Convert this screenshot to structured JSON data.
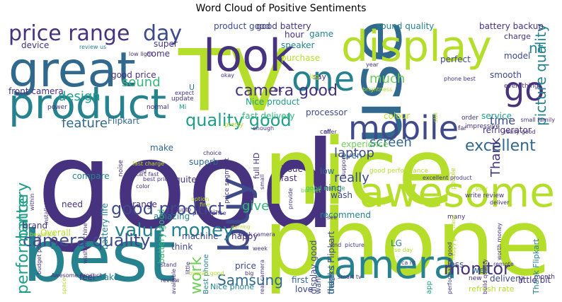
{
  "title": "Word Cloud of Positive Sentiments",
  "palette": {
    "dark_purple": "#46327e",
    "indigo": "#3e4a89",
    "blue": "#31688e",
    "teal": "#26828e",
    "teal_green": "#1f9e89",
    "green": "#35b779",
    "lime": "#6ece58",
    "yellow_green": "#b5de2b",
    "yellow": "#e3e418"
  },
  "words": [
    {
      "text": "good",
      "color": "#46327e"
    },
    {
      "text": "TV",
      "color": "#b5de2b"
    },
    {
      "text": "nice",
      "color": "#b5de2b"
    },
    {
      "text": "phone",
      "color": "#b5de2b"
    },
    {
      "text": "use",
      "color": "#31688e"
    },
    {
      "text": "best",
      "color": "#26828e"
    },
    {
      "text": "great",
      "color": "#31688e"
    },
    {
      "text": "display",
      "color": "#b5de2b"
    },
    {
      "text": "product",
      "color": "#26828e"
    },
    {
      "text": "look",
      "color": "#46327e"
    },
    {
      "text": "awesome",
      "color": "#b5de2b"
    },
    {
      "text": "camera",
      "color": "#26828e"
    },
    {
      "text": "mobile",
      "color": "#3e4a89"
    },
    {
      "text": "one",
      "color": "#26828e"
    },
    {
      "text": "go",
      "color": "#46327e"
    },
    {
      "text": "buy",
      "color": "#3e4a89"
    },
    {
      "text": "price range",
      "color": "#46327e"
    },
    {
      "text": "day",
      "color": "#3e4a89"
    },
    {
      "text": "value money",
      "color": "#26828e"
    },
    {
      "text": "camera quality",
      "color": "#3e4a89"
    },
    {
      "text": "good product",
      "color": "#3e4a89"
    },
    {
      "text": "quality good",
      "color": "#1f9e89"
    },
    {
      "text": "camera good",
      "color": "#46327e"
    },
    {
      "text": "excellent",
      "color": "#31688e"
    },
    {
      "text": "monitor",
      "color": "#46327e"
    },
    {
      "text": "Samsung",
      "color": "#31688e"
    },
    {
      "text": "screen",
      "color": "#31688e"
    },
    {
      "text": "laptop",
      "color": "#3e4a89"
    },
    {
      "text": "really",
      "color": "#3e4a89"
    },
    {
      "text": "give",
      "color": "#35b779"
    },
    {
      "text": "feature",
      "color": "#31688e"
    },
    {
      "text": "sound",
      "color": "#35b779"
    },
    {
      "text": "design",
      "color": "#1f9e89"
    },
    {
      "text": "much",
      "color": "#6ece58"
    },
    {
      "text": "time",
      "color": "#3e4a89"
    },
    {
      "text": "picture quality",
      "color": "#26828e"
    },
    {
      "text": "performance",
      "color": "#1f9e89"
    },
    {
      "text": "battery",
      "color": "#1f9e89"
    },
    {
      "text": "work",
      "color": "#6ece58"
    },
    {
      "text": "Thank",
      "color": "#46327e"
    },
    {
      "text": "nt",
      "color": "#26828e"
    },
    {
      "text": "good battery",
      "color": "#46327e"
    },
    {
      "text": "product good",
      "color": "#3e4a89"
    },
    {
      "text": "sound quality",
      "color": "#26828e"
    },
    {
      "text": "battery backup",
      "color": "#46327e"
    },
    {
      "text": "Flipkart",
      "color": "#31688e"
    },
    {
      "text": "good price",
      "color": "#46327e"
    },
    {
      "text": "Nice product",
      "color": "#1f9e89"
    },
    {
      "text": "fast delivery",
      "color": "#35b779"
    },
    {
      "text": "processor",
      "color": "#3e4a89"
    },
    {
      "text": "smooth",
      "color": "#3e4a89"
    },
    {
      "text": "refrigerator",
      "color": "#46327e"
    },
    {
      "text": "speaker",
      "color": "#26828e"
    },
    {
      "text": "purchase",
      "color": "#b5de2b"
    },
    {
      "text": "perfect",
      "color": "#3e4a89"
    },
    {
      "text": "hour",
      "color": "#46327e"
    },
    {
      "text": "game",
      "color": "#26828e"
    },
    {
      "text": "model",
      "color": "#3e4a89"
    },
    {
      "text": "charge",
      "color": "#46327e"
    },
    {
      "text": "service",
      "color": "#1f9e89"
    },
    {
      "text": "front camera",
      "color": "#46327e"
    },
    {
      "text": "device",
      "color": "#46327e"
    },
    {
      "text": "super",
      "color": "#46327e"
    },
    {
      "text": "come",
      "color": "#46327e"
    },
    {
      "text": "superb",
      "color": "#31688e"
    },
    {
      "text": "make",
      "color": "#31688e"
    },
    {
      "text": "compare",
      "color": "#26828e"
    },
    {
      "text": "battery life",
      "color": "#26828e"
    },
    {
      "text": "battery good",
      "color": "#35b779"
    },
    {
      "text": "range",
      "color": "#46327e"
    },
    {
      "text": "amazing",
      "color": "#26828e"
    },
    {
      "text": "need",
      "color": "#46327e"
    },
    {
      "text": "Overall",
      "color": "#b5de2b"
    },
    {
      "text": "brand",
      "color": "#46327e"
    },
    {
      "text": "feel",
      "color": "#46327e"
    },
    {
      "text": "take",
      "color": "#26828e"
    },
    {
      "text": "machine",
      "color": "#3e4a89"
    },
    {
      "text": "think",
      "color": "#3e4a89"
    },
    {
      "text": "happy",
      "color": "#46327e"
    },
    {
      "text": "price",
      "color": "#3e4a89"
    },
    {
      "text": "Nice phone",
      "color": "#26828e"
    },
    {
      "text": "decent",
      "color": "#1f9e89"
    },
    {
      "text": "first",
      "color": "#31688e"
    },
    {
      "text": "love",
      "color": "#3e4a89"
    },
    {
      "text": "well",
      "color": "#31688e"
    },
    {
      "text": "wash",
      "color": "#3e4a89"
    },
    {
      "text": "recommend",
      "color": "#26828e"
    },
    {
      "text": "low",
      "color": "#31688e"
    },
    {
      "text": "thing",
      "color": "#46327e"
    },
    {
      "text": "issue",
      "color": "#46327e"
    },
    {
      "text": "fast",
      "color": "#46327e"
    },
    {
      "text": "quite",
      "color": "#46327e"
    },
    {
      "text": "even",
      "color": "#31688e"
    },
    {
      "text": "experience",
      "color": "#6ece58"
    },
    {
      "text": "display good",
      "color": "#3e4a89"
    },
    {
      "text": "thanks Flipkart",
      "color": "#3e4a89"
    },
    {
      "text": "delivery",
      "color": "#3e4a89"
    },
    {
      "text": "less",
      "color": "#3e4a89"
    },
    {
      "text": "Thank Flipkart",
      "color": "#26828e"
    },
    {
      "text": "refresh rate",
      "color": "#b5de2b"
    },
    {
      "text": "little bit",
      "color": "#46327e"
    },
    {
      "text": "colour",
      "color": "#b5de2b"
    },
    {
      "text": "LG",
      "color": "#26828e"
    },
    {
      "text": "fridge",
      "color": "#31688e"
    },
    {
      "text": "want",
      "color": "#3e4a89"
    },
    {
      "text": "full HD",
      "color": "#46327e"
    },
    {
      "text": "say",
      "color": "#46327e"
    },
    {
      "text": "ok",
      "color": "#46327e"
    },
    {
      "text": "Best phone",
      "color": "#26828e"
    },
    {
      "text": "good performance",
      "color": "#b5de2b"
    },
    {
      "text": "good mobile",
      "color": "#35b779"
    },
    {
      "text": "budget",
      "color": "#6ece58"
    },
    {
      "text": "U",
      "color": "#26828e"
    },
    {
      "text": "Mi",
      "color": "#1f9e89"
    },
    {
      "text": "pretty",
      "color": "#b5de2b"
    },
    {
      "text": "call",
      "color": "#46327e"
    },
    {
      "text": "app",
      "color": "#1f9e89"
    },
    {
      "text": "new",
      "color": "#46327e"
    },
    {
      "text": "lag",
      "color": "#b5de2b"
    },
    {
      "text": "month",
      "color": "#46327e"
    },
    {
      "text": "impressive",
      "color": "#46327e"
    },
    {
      "text": "order",
      "color": "#46327e"
    },
    {
      "text": "people",
      "color": "#b5de2b"
    },
    {
      "text": "far",
      "color": "#46327e"
    },
    {
      "text": "really good",
      "color": "#46327e"
    },
    {
      "text": "everything",
      "color": "#46327e"
    },
    {
      "text": "worth money",
      "color": "#46327e"
    },
    {
      "text": "play",
      "color": "#b5de2b"
    },
    {
      "text": "deliver",
      "color": "#46327e"
    },
    {
      "text": "many",
      "color": "#46327e"
    },
    {
      "text": "write review",
      "color": "#46327e"
    },
    {
      "text": "review us",
      "color": "#26828e"
    },
    {
      "text": "low light",
      "color": "#46327e"
    },
    {
      "text": "noise",
      "color": "#46327e"
    },
    {
      "text": "update",
      "color": "#46327e"
    },
    {
      "text": "normal",
      "color": "#46327e"
    },
    {
      "text": "power",
      "color": "#46327e"
    },
    {
      "text": "offer",
      "color": "#46327e"
    },
    {
      "text": "brightness",
      "color": "#b5de2b"
    },
    {
      "text": "year",
      "color": "#46327e"
    },
    {
      "text": "still",
      "color": "#b5de2b"
    },
    {
      "text": "okay",
      "color": "#46327e"
    },
    {
      "text": "phone best",
      "color": "#46327e"
    },
    {
      "text": "fast charge",
      "color": "#b5de2b"
    },
    {
      "text": "bad",
      "color": "#46327e"
    },
    {
      "text": "best price",
      "color": "#46327e"
    },
    {
      "text": "color",
      "color": "#46327e"
    },
    {
      "text": "option",
      "color": "#b5de2b"
    },
    {
      "text": "little",
      "color": "#46327e"
    },
    {
      "text": "upto",
      "color": "#46327e"
    },
    {
      "text": "fine",
      "color": "#b5de2b"
    },
    {
      "text": "size",
      "color": "#46327e"
    },
    {
      "text": "gaming",
      "color": "#b5de2b"
    },
    {
      "text": "back camera",
      "color": "#46327e"
    },
    {
      "text": "week",
      "color": "#46327e"
    },
    {
      "text": "see",
      "color": "#46327e"
    },
    {
      "text": "find",
      "color": "#46327e"
    },
    {
      "text": "picture",
      "color": "#46327e"
    },
    {
      "text": "use day",
      "color": "#b5de2b"
    },
    {
      "text": "ca nt",
      "color": "#46327e"
    },
    {
      "text": "remote",
      "color": "#46327e"
    },
    {
      "text": "smart tv",
      "color": "#46327e"
    },
    {
      "text": "review",
      "color": "#46327e"
    },
    {
      "text": "stand",
      "color": "#46327e"
    },
    {
      "text": "available",
      "color": "#46327e"
    },
    {
      "text": "big",
      "color": "#46327e"
    },
    {
      "text": "rear camera",
      "color": "#46327e"
    },
    {
      "text": "Awesome product",
      "color": "#46327e"
    },
    {
      "text": "space",
      "color": "#b5de2b"
    },
    {
      "text": "beautiful",
      "color": "#b5de2b"
    },
    {
      "text": "within",
      "color": "#46327e"
    },
    {
      "text": "installation",
      "color": "#46327e"
    },
    {
      "text": "support",
      "color": "#46327e"
    },
    {
      "text": "provide",
      "color": "#46327e"
    },
    {
      "text": "expect",
      "color": "#46327e"
    },
    {
      "text": "choice",
      "color": "#46327e"
    },
    {
      "text": "overall good",
      "color": "#b5de2b"
    },
    {
      "text": "small family",
      "color": "#46327e"
    },
    {
      "text": "happy purchase",
      "color": "#b5de2b"
    },
    {
      "text": "build quality",
      "color": "#46327e"
    },
    {
      "text": "performance good",
      "color": "#46327e"
    },
    {
      "text": "excellent product",
      "color": "#46327e"
    },
    {
      "text": "budget phone",
      "color": "#46327e"
    },
    {
      "text": "wash machine",
      "color": "#46327e"
    },
    {
      "text": "Flipkart fast",
      "color": "#46327e"
    },
    {
      "text": "price segment",
      "color": "#46327e"
    },
    {
      "text": "phone price",
      "color": "#46327e"
    },
    {
      "text": "enough",
      "color": "#46327e"
    },
    {
      "text": "small",
      "color": "#46327e"
    }
  ]
}
